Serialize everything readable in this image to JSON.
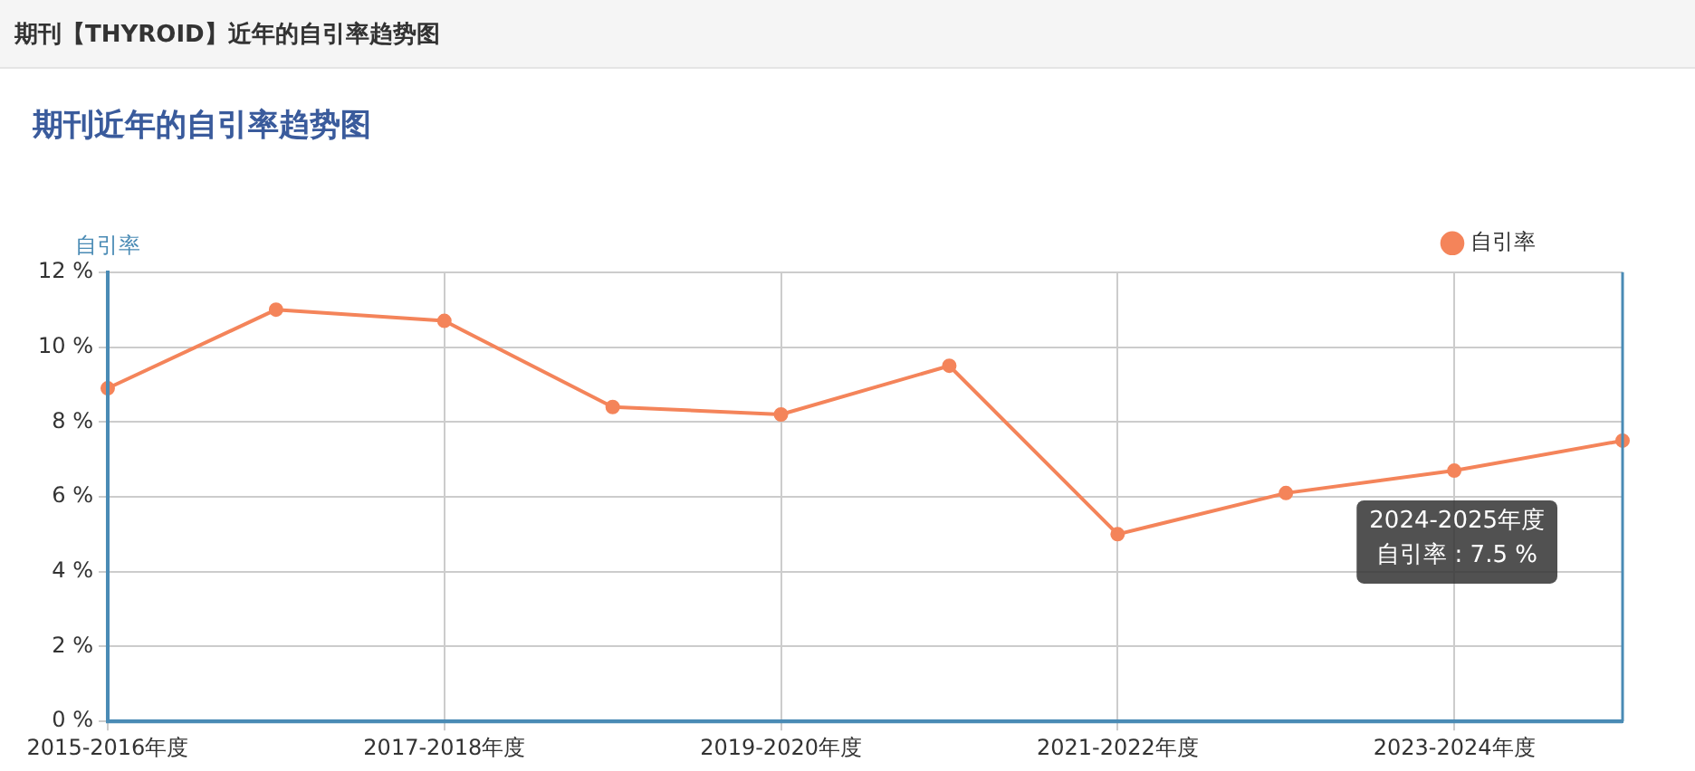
{
  "chart_data": {
    "type": "line",
    "title": "期刊近年的自引率趋势图",
    "ylabel": "自引率",
    "categories": [
      "2015-2016年度",
      null,
      "2017-2018年度",
      null,
      "2019-2020年度",
      null,
      "2021-2022年度",
      null,
      "2023-2024年度",
      null
    ],
    "series": [
      {
        "name": "自引率",
        "color": "#f4845a",
        "values": [
          8.9,
          11.0,
          10.7,
          8.4,
          8.2,
          9.5,
          5.0,
          6.1,
          6.7,
          7.5
        ]
      }
    ],
    "ylim": [
      0,
      12
    ],
    "yticks": [
      {
        "value": 0,
        "label": "0 %"
      },
      {
        "value": 2,
        "label": "2 %"
      },
      {
        "value": 4,
        "label": "4 %"
      },
      {
        "value": 6,
        "label": "6 %"
      },
      {
        "value": 8,
        "label": "8 %"
      },
      {
        "value": 10,
        "label": "10 %"
      },
      {
        "value": 12,
        "label": "12 %"
      }
    ],
    "grid": true,
    "legend": "top right",
    "marker": "circle",
    "line_style": "solid",
    "annotations": [
      "期刊【THYROID】近年的自引率趋势图",
      "2024-2025年度",
      "自引率 : 7.5 %"
    ]
  }
}
